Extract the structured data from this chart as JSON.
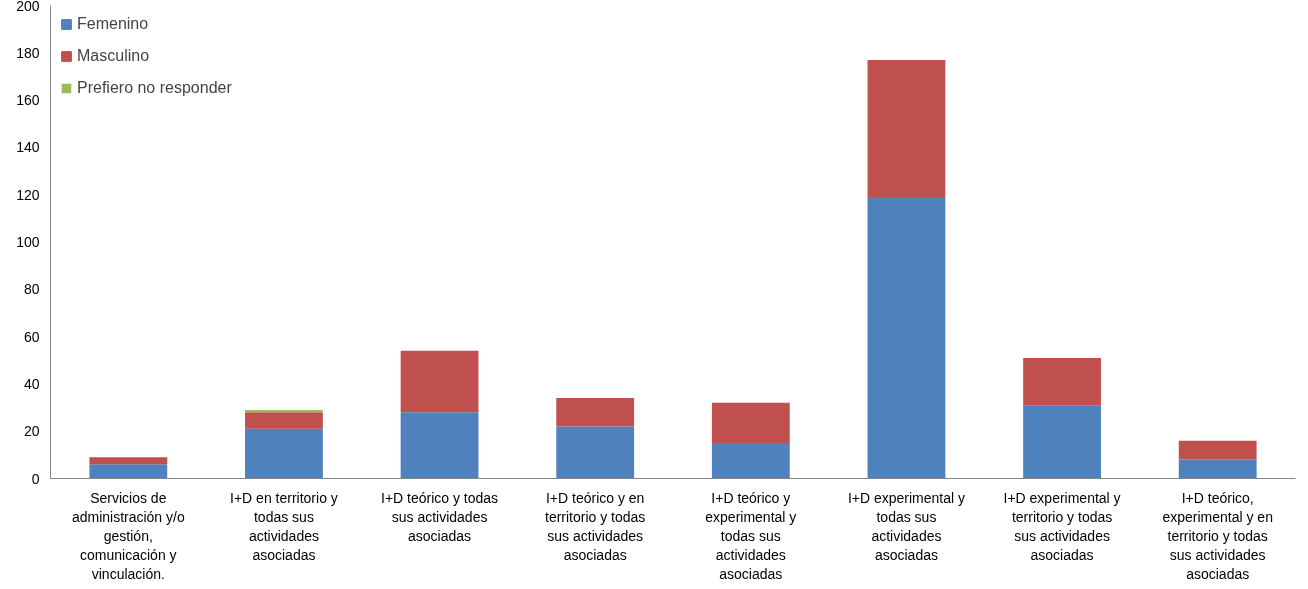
{
  "chart_data": {
    "type": "bar",
    "stacked": true,
    "categories": [
      "Servicios de administración y/o gestión, comunicación y vinculación.",
      "I+D en territorio y todas sus actividades asociadas",
      "I+D teórico y todas sus actividades asociadas",
      "I+D teórico y en territorio y todas sus actividades asociadas",
      "I+D teórico y experimental y todas sus actividades asociadas",
      "I+D experimental y todas sus actividades asociadas",
      "I+D experimental y territorio y todas sus actividades asociadas",
      "I+D teórico, experimental y en territorio y todas sus actividades asociadas"
    ],
    "series": [
      {
        "name": "Femenino",
        "color": "#4f81bd",
        "values": [
          6,
          21,
          28,
          22,
          15,
          119,
          31,
          8
        ]
      },
      {
        "name": "Masculino",
        "color": "#c0504d",
        "values": [
          3,
          7,
          26,
          12,
          17,
          58,
          20,
          8
        ]
      },
      {
        "name": "Prefiero no responder",
        "color": "#9bbb59",
        "values": [
          null,
          1,
          null,
          null,
          null,
          null,
          null,
          null
        ]
      }
    ],
    "ylim": [
      0,
      200
    ],
    "yticks": [
      0,
      20,
      40,
      60,
      80,
      100,
      120,
      140,
      160,
      180,
      200
    ],
    "grid": false,
    "legend": "top left"
  }
}
